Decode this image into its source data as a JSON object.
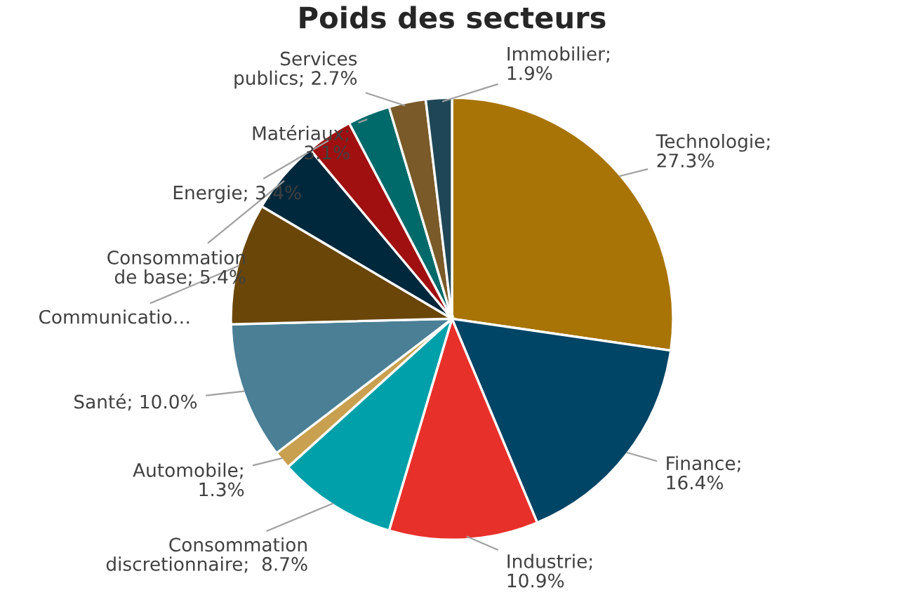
{
  "chart_data": {
    "type": "pie",
    "title": "Poids des secteurs",
    "categories": [
      "Technologie;\n27.3%",
      "Finance;\n16.4%",
      "Industrie;\n10.9%",
      "Consommation\ndiscretionnaire;  8.7%",
      "Automobile;\n1.3%",
      "Santé; 10.0%",
      "Communicatio…",
      "Consommation\nde base; 5.4%",
      "Energie; 3.4%",
      "Matériaux;\n3.1%",
      "Services\npublics; 2.7%",
      "Immobilier;\n1.9%"
    ],
    "values": [
      27.3,
      16.4,
      10.9,
      8.7,
      1.3,
      10.0,
      8.9,
      5.4,
      3.4,
      3.1,
      2.7,
      1.9
    ],
    "colors": [
      "#a87406",
      "#004466",
      "#e8302a",
      "#00a0aa",
      "#c8a050",
      "#4a7f96",
      "#6a4608",
      "#00283c",
      "#a01010",
      "#006a6a",
      "#7a5a28",
      "#1e4656"
    ]
  }
}
